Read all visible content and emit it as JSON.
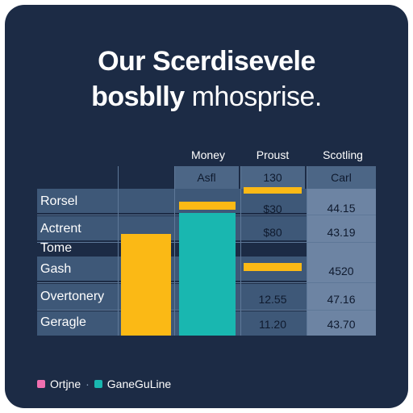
{
  "title_line1": "Our Scerdisevele",
  "title_line2_bold": "bosblly",
  "title_line2_light": "mhosprise.",
  "chart_data": {
    "type": "bar",
    "title": "Our Scerdisevele bosblly mhosprise.",
    "columns": [
      {
        "name": "Money",
        "header": "Asfl"
      },
      {
        "name": "Proust",
        "header": "130"
      },
      {
        "name": "Scotling",
        "header": "Carl"
      }
    ],
    "rows": [
      "Rorsel",
      "Actrent",
      "Tome",
      "Gash",
      "Overtonery",
      "Geragle"
    ],
    "proust_values": [
      "$30",
      "$80",
      "",
      "",
      "12.55",
      "11.20"
    ],
    "scotling_values": [
      "44.15",
      "43.19",
      "",
      "4520",
      "47.16",
      "43.70"
    ],
    "series": [
      {
        "name": "Ortjne",
        "color": "#f06fb0"
      },
      {
        "name": "GaneGuLine",
        "color": "#19b7b0"
      }
    ],
    "bars": [
      {
        "column": "Money",
        "series": "yellow",
        "color": "#fbb915",
        "from_row": 2,
        "to_row": 5
      },
      {
        "column": "Money",
        "series": "teal",
        "color": "#19b7b0",
        "from_row": 1,
        "to_row": 5
      },
      {
        "column": "Money",
        "series": "accent",
        "color": "#fbb915",
        "row": 0.5
      },
      {
        "column": "Proust",
        "series": "accent",
        "color": "#fbb915",
        "row": -0.3
      },
      {
        "column": "Proust",
        "series": "accent",
        "color": "#fbb915",
        "row": 3
      }
    ]
  }
}
